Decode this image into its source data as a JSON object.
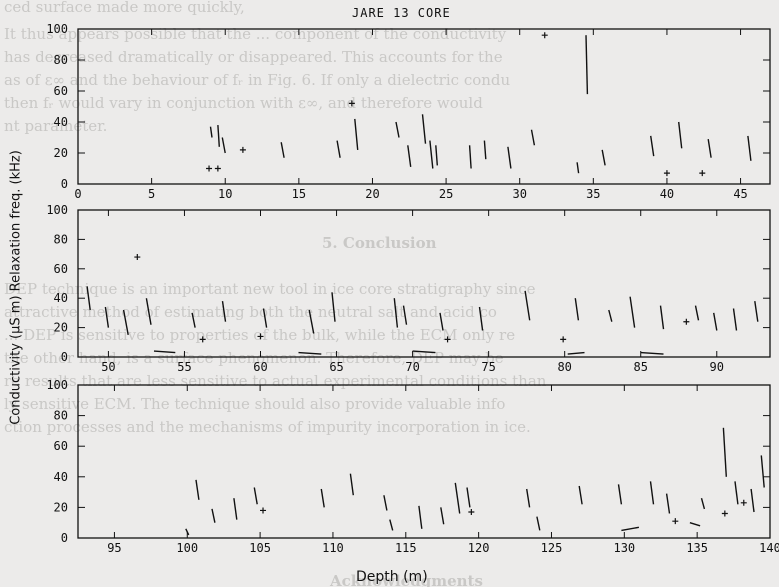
{
  "background_text": {
    "lines": [
      "ced surface made more quickly,",
      "It thus appears possible that the ... component of the conductivity",
      "has decreased dramatically or disappeared. This accounts for the",
      "as of ε∞ and the behaviour of fᵣ in Fig. 6. If only a dielectric condu",
      "then fᵣ would vary in conjunction with ε∞, and therefore would",
      "nt parameter.",
      "DEP technique is an important new tool in ice core stratigraphy since",
      "attractive method of estimating both the neutral salt and acid co",
      "... DEP is sensitive to properties of the bulk, while the ECM only re",
      "the other hand, is a surface phenomenon. Therefore, DEP may be",
      "re results that are less sensitive to actual experimental conditions than",
      "ly sensitive ECM. The technique should also provide valuable info",
      "ction processes and the mechanisms of impurity incorporation in ice."
    ],
    "headings": [
      "5. Conclusion",
      "Acknowledgments"
    ]
  },
  "chart_data": {
    "type": "line",
    "title": "JARE 13 CORE",
    "xlabel": "Depth (m)",
    "ylabel": "Conductivity (μS m) Relaxation freq. (kHz)",
    "grid": false,
    "panels": [
      {
        "xlim": [
          0,
          47
        ],
        "ylim": [
          0,
          100
        ],
        "x_ticks": [
          0,
          5,
          10,
          15,
          20,
          25,
          30,
          35,
          40,
          45
        ],
        "y_ticks": [
          0,
          20,
          40,
          60,
          80,
          100
        ],
        "segments": [
          [
            [
              9.0,
              37
            ],
            [
              9.1,
              30
            ]
          ],
          [
            [
              9.5,
              38
            ],
            [
              9.6,
              24
            ]
          ],
          [
            [
              9.8,
              30
            ],
            [
              10.0,
              20
            ]
          ],
          [
            [
              13.8,
              27
            ],
            [
              14.0,
              17
            ]
          ],
          [
            [
              17.6,
              28
            ],
            [
              17.8,
              17
            ]
          ],
          [
            [
              18.8,
              42
            ],
            [
              19.0,
              22
            ]
          ],
          [
            [
              21.6,
              40
            ],
            [
              21.8,
              30
            ]
          ],
          [
            [
              22.4,
              25
            ],
            [
              22.6,
              11
            ]
          ],
          [
            [
              23.4,
              45
            ],
            [
              23.6,
              26
            ]
          ],
          [
            [
              23.9,
              28
            ],
            [
              24.1,
              10
            ]
          ],
          [
            [
              24.3,
              25
            ],
            [
              24.4,
              12
            ]
          ],
          [
            [
              26.6,
              25
            ],
            [
              26.7,
              10
            ]
          ],
          [
            [
              27.6,
              28
            ],
            [
              27.7,
              16
            ]
          ],
          [
            [
              29.2,
              24
            ],
            [
              29.4,
              10
            ]
          ],
          [
            [
              30.8,
              35
            ],
            [
              31.0,
              25
            ]
          ],
          [
            [
              33.9,
              14
            ],
            [
              34.0,
              7
            ]
          ],
          [
            [
              34.5,
              96
            ],
            [
              34.6,
              58
            ]
          ],
          [
            [
              35.6,
              22
            ],
            [
              35.8,
              12
            ]
          ],
          [
            [
              38.9,
              31
            ],
            [
              39.1,
              18
            ]
          ],
          [
            [
              40.8,
              40
            ],
            [
              41.0,
              23
            ]
          ],
          [
            [
              42.8,
              29
            ],
            [
              43.0,
              17
            ]
          ],
          [
            [
              45.5,
              31
            ],
            [
              45.7,
              15
            ]
          ]
        ],
        "markers": [
          [
            8.9,
            10
          ],
          [
            9.5,
            10
          ],
          [
            11.2,
            22
          ],
          [
            18.6,
            52
          ],
          [
            31.7,
            96
          ],
          [
            40.0,
            7
          ],
          [
            42.4,
            7
          ]
        ]
      },
      {
        "xlim": [
          48,
          93.5
        ],
        "ylim": [
          0,
          100
        ],
        "x_ticks": [
          50,
          55,
          60,
          65,
          70,
          75,
          80,
          85,
          90
        ],
        "y_ticks": [
          0,
          20,
          40,
          60,
          80,
          100
        ],
        "segments": [
          [
            [
              48.6,
              48
            ],
            [
              48.8,
              32
            ]
          ],
          [
            [
              49.8,
              34
            ],
            [
              50.0,
              20
            ]
          ],
          [
            [
              51.0,
              32
            ],
            [
              51.3,
              15
            ]
          ],
          [
            [
              52.5,
              40
            ],
            [
              52.8,
              22
            ]
          ],
          [
            [
              55.5,
              30
            ],
            [
              55.7,
              20
            ]
          ],
          [
            [
              57.5,
              38
            ],
            [
              57.7,
              24
            ]
          ],
          [
            [
              60.2,
              33
            ],
            [
              60.4,
              20
            ]
          ],
          [
            [
              63.2,
              32
            ],
            [
              63.5,
              16
            ]
          ],
          [
            [
              64.7,
              44
            ],
            [
              64.9,
              24
            ]
          ],
          [
            [
              68.8,
              40
            ],
            [
              69.0,
              20
            ]
          ],
          [
            [
              69.4,
              35
            ],
            [
              69.6,
              22
            ]
          ],
          [
            [
              71.8,
              30
            ],
            [
              72.0,
              18
            ]
          ],
          [
            [
              74.4,
              34
            ],
            [
              74.6,
              18
            ]
          ],
          [
            [
              77.4,
              45
            ],
            [
              77.7,
              25
            ]
          ],
          [
            [
              80.7,
              40
            ],
            [
              80.9,
              25
            ]
          ],
          [
            [
              82.9,
              32
            ],
            [
              83.1,
              24
            ]
          ],
          [
            [
              84.3,
              41
            ],
            [
              84.6,
              20
            ]
          ],
          [
            [
              86.3,
              35
            ],
            [
              86.5,
              19
            ]
          ],
          [
            [
              88.6,
              35
            ],
            [
              88.8,
              25
            ]
          ],
          [
            [
              89.8,
              30
            ],
            [
              90.0,
              18
            ]
          ],
          [
            [
              91.1,
              33
            ],
            [
              91.3,
              18
            ]
          ],
          [
            [
              92.5,
              38
            ],
            [
              92.7,
              24
            ]
          ],
          [
            [
              53.0,
              4
            ],
            [
              54.4,
              3
            ]
          ],
          [
            [
              62.5,
              3
            ],
            [
              64.0,
              2
            ]
          ],
          [
            [
              70.0,
              4
            ],
            [
              71.5,
              3
            ]
          ],
          [
            [
              80.2,
              2
            ],
            [
              81.3,
              3
            ]
          ],
          [
            [
              85.0,
              3
            ],
            [
              86.5,
              2
            ]
          ]
        ],
        "markers": [
          [
            51.9,
            68
          ],
          [
            56.2,
            12
          ],
          [
            60.0,
            14
          ],
          [
            72.3,
            12
          ],
          [
            79.9,
            12
          ],
          [
            88.0,
            24
          ]
        ]
      },
      {
        "xlim": [
          92.5,
          140
        ],
        "ylim": [
          0,
          100
        ],
        "x_ticks": [
          95,
          100,
          105,
          110,
          115,
          120,
          125,
          130,
          135,
          140
        ],
        "y_ticks": [
          0,
          20,
          40,
          60,
          80,
          100
        ],
        "segments": [
          [
            [
              99.9,
              6
            ],
            [
              100.1,
              2
            ]
          ],
          [
            [
              100.6,
              38
            ],
            [
              100.8,
              25
            ]
          ],
          [
            [
              101.7,
              19
            ],
            [
              101.9,
              10
            ]
          ],
          [
            [
              103.2,
              26
            ],
            [
              103.4,
              12
            ]
          ],
          [
            [
              104.6,
              33
            ],
            [
              104.8,
              22
            ]
          ],
          [
            [
              109.2,
              32
            ],
            [
              109.4,
              20
            ]
          ],
          [
            [
              111.2,
              42
            ],
            [
              111.4,
              28
            ]
          ],
          [
            [
              113.5,
              28
            ],
            [
              113.7,
              18
            ]
          ],
          [
            [
              113.9,
              12
            ],
            [
              114.1,
              5
            ]
          ],
          [
            [
              115.9,
              21
            ],
            [
              116.1,
              6
            ]
          ],
          [
            [
              117.4,
              20
            ],
            [
              117.6,
              9
            ]
          ],
          [
            [
              118.4,
              36
            ],
            [
              118.7,
              16
            ]
          ],
          [
            [
              119.2,
              33
            ],
            [
              119.4,
              20
            ]
          ],
          [
            [
              123.3,
              32
            ],
            [
              123.5,
              20
            ]
          ],
          [
            [
              124.0,
              14
            ],
            [
              124.2,
              5
            ]
          ],
          [
            [
              126.9,
              34
            ],
            [
              127.1,
              22
            ]
          ],
          [
            [
              129.6,
              35
            ],
            [
              129.8,
              22
            ]
          ],
          [
            [
              131.8,
              37
            ],
            [
              132.0,
              22
            ]
          ],
          [
            [
              132.9,
              29
            ],
            [
              133.1,
              16
            ]
          ],
          [
            [
              135.3,
              26
            ],
            [
              135.5,
              19
            ]
          ],
          [
            [
              136.8,
              72
            ],
            [
              137.0,
              40
            ]
          ],
          [
            [
              137.6,
              37
            ],
            [
              137.8,
              22
            ]
          ],
          [
            [
              138.7,
              32
            ],
            [
              138.9,
              17
            ]
          ],
          [
            [
              139.4,
              54
            ],
            [
              139.6,
              33
            ]
          ],
          [
            [
              129.8,
              5
            ],
            [
              131.0,
              7
            ]
          ],
          [
            [
              134.5,
              10
            ],
            [
              135.2,
              8
            ]
          ]
        ],
        "markers": [
          [
            105.2,
            18
          ],
          [
            119.5,
            17
          ],
          [
            133.5,
            11
          ],
          [
            136.9,
            16
          ],
          [
            138.2,
            23
          ]
        ]
      }
    ]
  }
}
